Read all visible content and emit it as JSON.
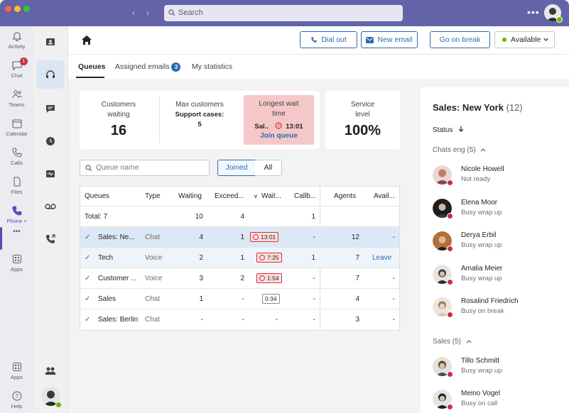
{
  "window": {
    "search_placeholder": "Search",
    "more_label": "•••",
    "colors": {
      "titlebar": "#6264a7",
      "accent": "#2b6cb0",
      "busy": "#c4314b",
      "available": "#6bb700"
    }
  },
  "rail": {
    "items": [
      {
        "label": "Activity",
        "icon": "bell-icon"
      },
      {
        "label": "Chat",
        "icon": "chat-icon",
        "badge": "1"
      },
      {
        "label": "Teams",
        "icon": "teams-icon"
      },
      {
        "label": "Calendar",
        "icon": "calendar-icon"
      },
      {
        "label": "Calls",
        "icon": "call-icon"
      },
      {
        "label": "Files",
        "icon": "file-icon"
      },
      {
        "label": "Phone +",
        "icon": "phone-icon"
      },
      {
        "label": "Apps",
        "icon": "apps-icon"
      },
      {
        "label": "Apps",
        "icon": "apps-icon"
      },
      {
        "label": "Help",
        "icon": "help-icon"
      }
    ],
    "more_label": "•••"
  },
  "header": {
    "dial_out": "Dial out",
    "new_email": "New email",
    "go_on_break": "Go on break",
    "availability": "Available"
  },
  "tabs": {
    "queues": "Queues",
    "assigned_emails": "Assigned emails",
    "assigned_emails_count": "3",
    "my_statistics": "My statistics"
  },
  "stats": {
    "customers_waiting_title_1": "Customers",
    "customers_waiting_title_2": "waiting",
    "customers_waiting_value": "16",
    "max_customers_title": "Max customers",
    "support_cases_label": "Support cases:",
    "support_cases_value": "5",
    "longest_wait_title_1": "Longest wait",
    "longest_wait_title_2": "time",
    "longest_wait_queue": "Sal..",
    "longest_wait_time": "13:01",
    "join_queue": "Join queue",
    "service_level_title_1": "Service",
    "service_level_title_2": "level",
    "service_level_value": "100%"
  },
  "filter": {
    "queue_name_placeholder": "Queue name",
    "joined": "Joined",
    "all": "All"
  },
  "table": {
    "headers": {
      "queues": "Queues",
      "type": "Type",
      "waiting": "Waiting",
      "exceeded": "Exceed...",
      "wait": "Wait...",
      "callback": "Callb...",
      "agents": "Agents",
      "available": "Avail..."
    },
    "total": {
      "label": "Total: 7",
      "waiting": "10",
      "exceeded": "4",
      "callback": "1"
    },
    "rows": [
      {
        "name": "Sales: Ne...",
        "type": "Chat",
        "waiting": "4",
        "exceeded": "1",
        "wait": "13:01",
        "callback": "-",
        "agents": "12",
        "available": "-"
      },
      {
        "name": "Tech",
        "type": "Voice",
        "waiting": "2",
        "exceeded": "1",
        "wait": "7:25",
        "callback": "1",
        "agents": "7",
        "available": "Leave"
      },
      {
        "name": "Customer ...",
        "type": "Voice",
        "waiting": "3",
        "exceeded": "2",
        "wait": "1:54",
        "callback": "-",
        "agents": "7",
        "available": "-"
      },
      {
        "name": "Sales",
        "type": "Chat",
        "waiting": "1",
        "exceeded": "-",
        "wait": "0:34",
        "callback": "-",
        "agents": "4",
        "available": "-"
      },
      {
        "name": "Sales: Berlin",
        "type": "Chat",
        "waiting": "-",
        "exceeded": "-",
        "wait": "-",
        "callback": "-",
        "agents": "3",
        "available": "-"
      }
    ]
  },
  "panel": {
    "title": "Sales: New York",
    "count": "(12)",
    "status_label": "Status",
    "group1": "Chats eng (5)",
    "group2": "Sales (5)",
    "people": [
      {
        "name": "Nicole Howell",
        "status": "Not ready",
        "color": "#c97a6a"
      },
      {
        "name": "Elena Moor",
        "status": "Busy wrap up",
        "color": "#3a3a3a"
      },
      {
        "name": "Derya Erbil",
        "status": "Busy wrap up",
        "color": "#8a5a3a"
      },
      {
        "name": "Amalia Meier",
        "status": "Busy wrap up",
        "color": "#7a6a6a"
      },
      {
        "name": "Rosalind Friedrich",
        "status": "Busy on break",
        "color": "#b08a6a"
      },
      {
        "name": "Tillo Schmitt",
        "status": "Busy wrap up",
        "color": "#6a5a4a"
      },
      {
        "name": "Meino Vogel",
        "status": "Busy on call",
        "color": "#2a2a2a"
      }
    ]
  }
}
